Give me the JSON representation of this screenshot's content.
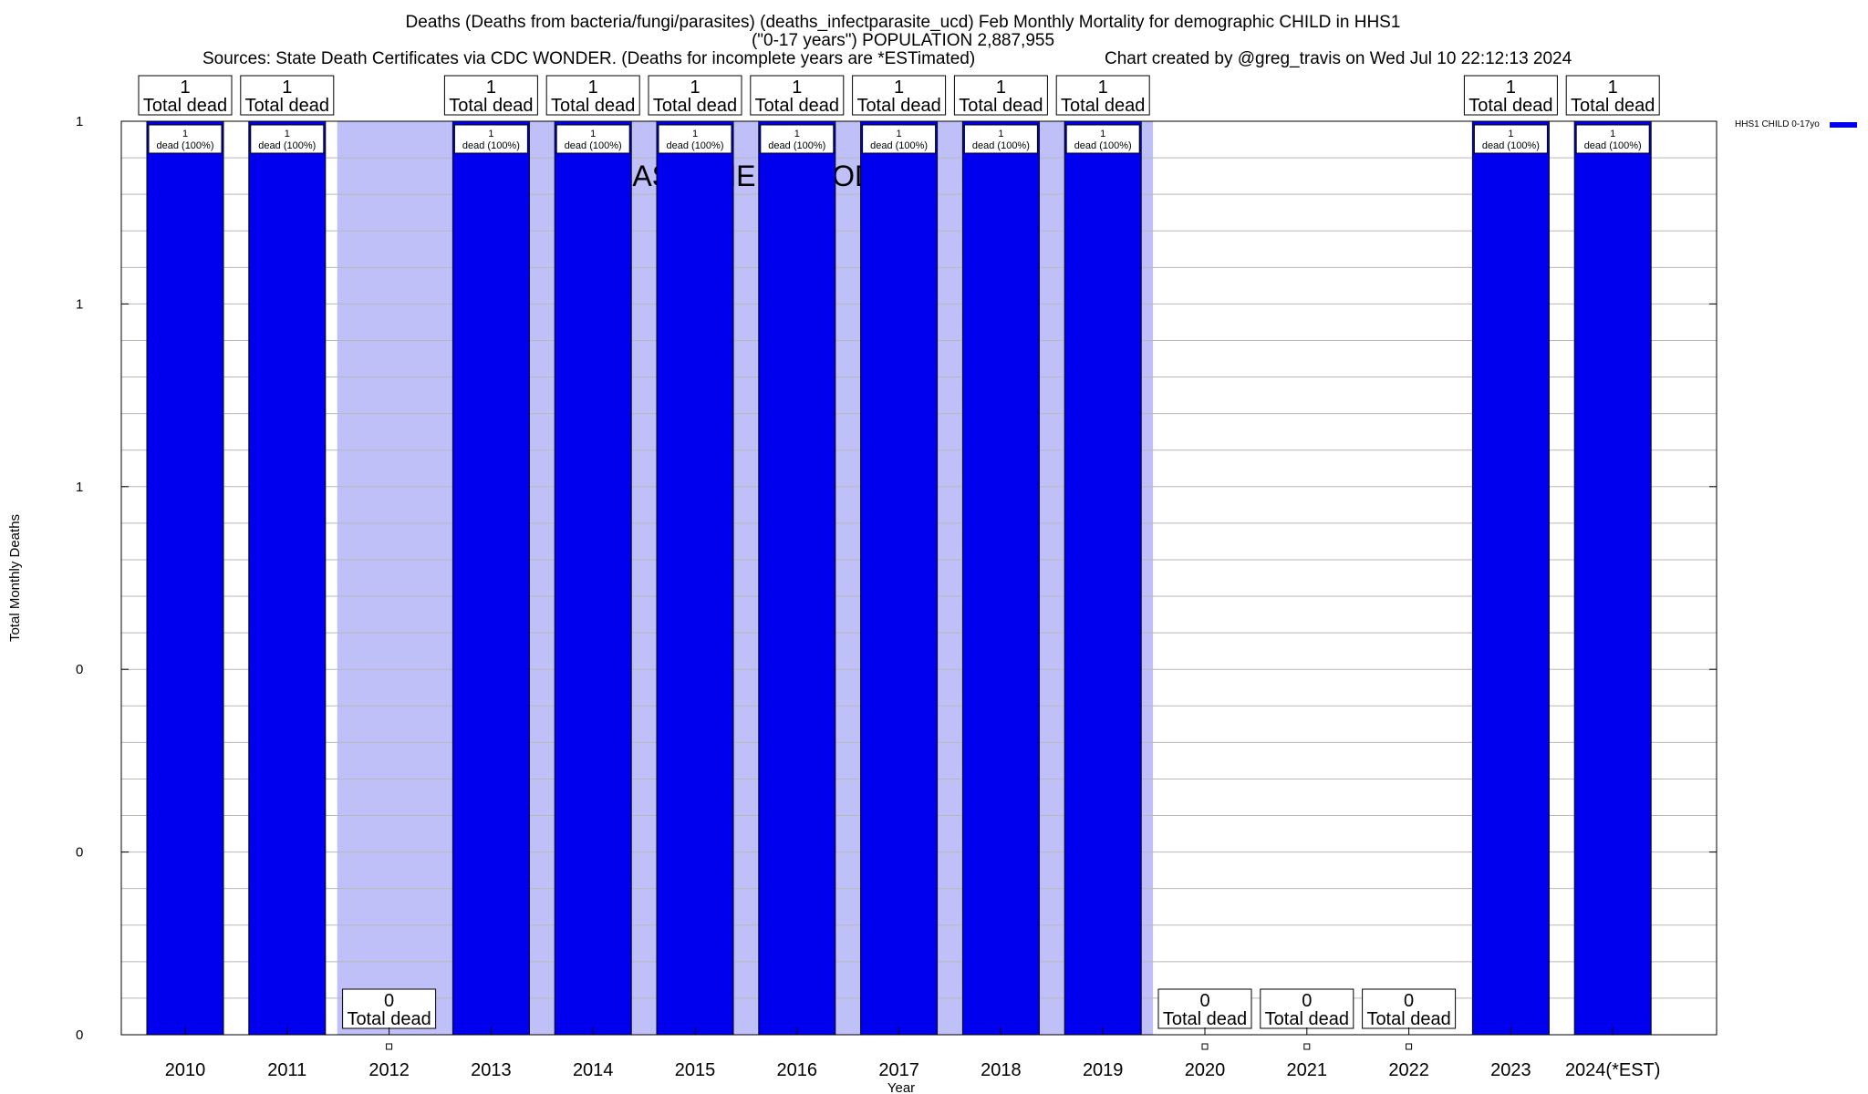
{
  "chart_data": {
    "type": "bar",
    "title": "Deaths (Deaths from bacteria/fungi/parasites) (deaths_infectparasite_ucd) Feb Monthly Mortality for demographic CHILD in HHS1",
    "subtitle": "(\"0-17 years\") POPULATION 2,887,955",
    "sources": "Sources: State Death Certificates via CDC WONDER. (Deaths for incomplete years are *ESTimated)",
    "credit": "Chart created by @greg_travis on Wed Jul 10 22:12:13 2024",
    "xlabel": "Year",
    "ylabel": "Total Monthly Deaths",
    "ylim": [
      0,
      1
    ],
    "y_tick_labels": [
      "0",
      "0",
      "0",
      "1",
      "1",
      "1"
    ],
    "categories": [
      "2010",
      "2011",
      "2012",
      "2013",
      "2014",
      "2015",
      "2016",
      "2017",
      "2018",
      "2019",
      "2020",
      "2021",
      "2022",
      "2023",
      "2024(*EST)"
    ],
    "series": [
      {
        "name": "HHS1 CHILD 0-17yo",
        "color": "#0000ee",
        "values": [
          1,
          1,
          0,
          1,
          1,
          1,
          1,
          1,
          1,
          1,
          0,
          0,
          0,
          1,
          1
        ]
      }
    ],
    "total_labels": [
      "1",
      "1",
      "0",
      "1",
      "1",
      "1",
      "1",
      "1",
      "1",
      "1",
      "0",
      "0",
      "0",
      "1",
      "1"
    ],
    "total_label_suffix": "Total dead",
    "bar_label_suffix": "dead (100%)",
    "baseline_period": {
      "label": "BASELINE PERIOD",
      "start": "2012",
      "end": "2019",
      "color": "#c0c0f8"
    },
    "grid": true,
    "legend_position": "top-right"
  }
}
